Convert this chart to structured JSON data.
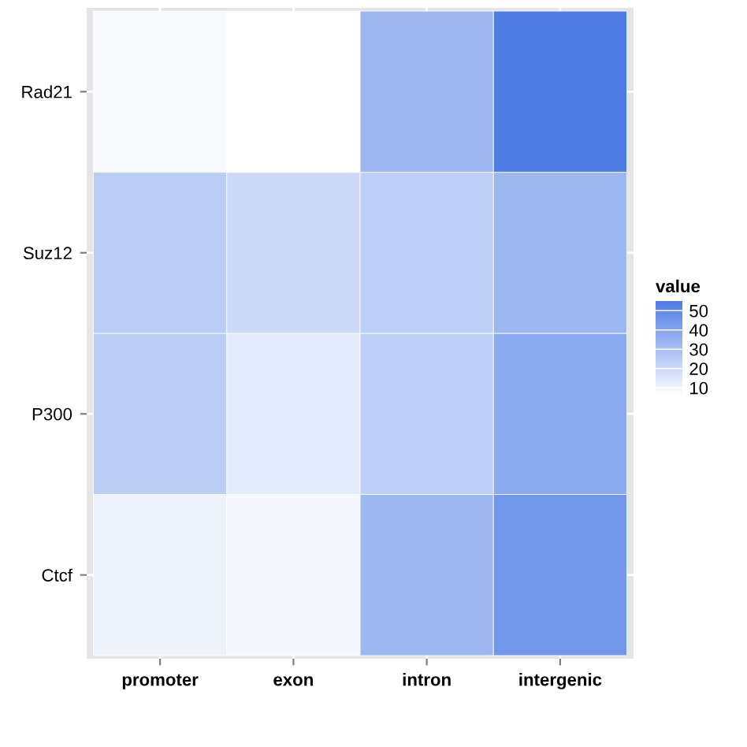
{
  "chart_data": {
    "type": "heatmap",
    "clabel": "value",
    "categories": [
      "promoter",
      "exon",
      "intron",
      "intergenic"
    ],
    "y_categories": [
      "Rad21",
      "Suz12",
      "P300",
      "Ctcf"
    ],
    "cells": [
      [
        8,
        6,
        33,
        55
      ],
      [
        25,
        20,
        24,
        33
      ],
      [
        25,
        14,
        24,
        38
      ],
      [
        11,
        9,
        33,
        45
      ]
    ],
    "clim": [
      6,
      55
    ],
    "cticks": [
      10,
      20,
      30,
      40,
      50
    ],
    "grid": true
  }
}
